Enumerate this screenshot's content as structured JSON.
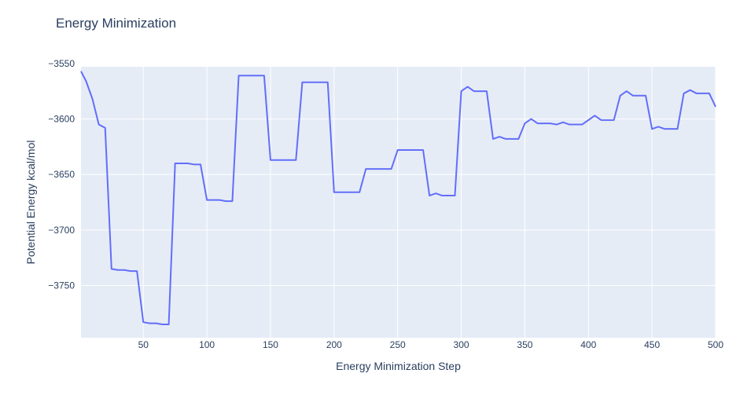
{
  "chart_data": {
    "type": "line",
    "title": "Energy Minimization",
    "xlabel": "Energy Minimization Step",
    "ylabel": "Potential Energy kcal/mol",
    "xlim": [
      1,
      500
    ],
    "ylim": [
      -3797,
      -3553
    ],
    "grid": true,
    "legend": "none",
    "x_ticks": [
      "50",
      "100",
      "150",
      "200",
      "250",
      "300",
      "350",
      "400",
      "450",
      "500"
    ],
    "y_ticks": [
      "−3550",
      "−3600",
      "−3650",
      "−3700",
      "−3750"
    ],
    "series": [
      {
        "color": "#636efa",
        "x": [
          1,
          5,
          10,
          15,
          20,
          25,
          30,
          35,
          40,
          45,
          50,
          55,
          60,
          65,
          70,
          75,
          80,
          85,
          90,
          95,
          100,
          105,
          110,
          115,
          120,
          125,
          130,
          135,
          140,
          145,
          150,
          155,
          160,
          165,
          170,
          175,
          180,
          185,
          190,
          195,
          200,
          205,
          210,
          215,
          220,
          225,
          230,
          235,
          240,
          245,
          250,
          255,
          260,
          265,
          270,
          275,
          280,
          285,
          290,
          295,
          300,
          305,
          310,
          315,
          320,
          325,
          330,
          335,
          340,
          345,
          350,
          355,
          360,
          365,
          370,
          375,
          380,
          385,
          390,
          395,
          400,
          405,
          410,
          415,
          420,
          425,
          430,
          435,
          440,
          445,
          450,
          455,
          460,
          465,
          470,
          475,
          480,
          485,
          490,
          495,
          500
        ],
        "y": [
          -3557,
          -3566,
          -3582,
          -3605,
          -3608,
          -3735,
          -3736,
          -3736,
          -3737,
          -3737,
          -3783,
          -3784,
          -3784,
          -3785,
          -3785,
          -3640,
          -3640,
          -3640,
          -3641,
          -3641,
          -3673,
          -3673,
          -3673,
          -3674,
          -3674,
          -3561,
          -3561,
          -3561,
          -3561,
          -3561,
          -3637,
          -3637,
          -3637,
          -3637,
          -3637,
          -3567,
          -3567,
          -3567,
          -3567,
          -3567,
          -3666,
          -3666,
          -3666,
          -3666,
          -3666,
          -3645,
          -3645,
          -3645,
          -3645,
          -3645,
          -3628,
          -3628,
          -3628,
          -3628,
          -3628,
          -3669,
          -3667,
          -3669,
          -3669,
          -3669,
          -3575,
          -3571,
          -3575,
          -3575,
          -3575,
          -3618,
          -3616,
          -3618,
          -3618,
          -3618,
          -3604,
          -3600,
          -3604,
          -3604,
          -3604,
          -3605,
          -3603,
          -3605,
          -3605,
          -3605,
          -3601,
          -3597,
          -3601,
          -3601,
          -3601,
          -3579,
          -3575,
          -3579,
          -3579,
          -3579,
          -3609,
          -3607,
          -3609,
          -3609,
          -3609,
          -3577,
          -3574,
          -3577,
          -3577,
          -3577,
          -3589
        ]
      }
    ]
  }
}
